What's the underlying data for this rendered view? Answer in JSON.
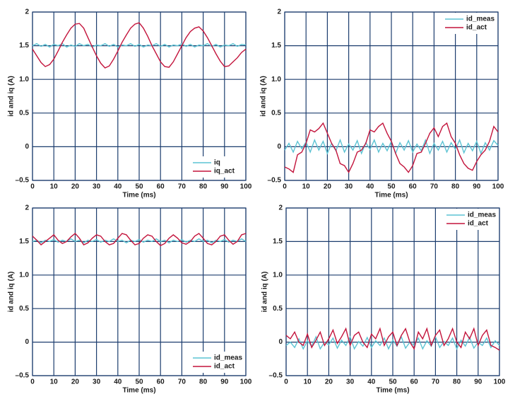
{
  "chart_data": [
    {
      "type": "line",
      "ylabel": "id and iq (A)",
      "xlabel": "Time (ms)",
      "xlim": [
        0,
        100
      ],
      "ylim": [
        -0.5,
        2
      ],
      "xticks": [
        0,
        10,
        20,
        30,
        40,
        50,
        60,
        70,
        80,
        90,
        100
      ],
      "yticks": [
        {
          "value": -0.5,
          "label": "–0.5"
        },
        0,
        0.5,
        {
          "value": 1,
          "label": "1.0"
        },
        1.5,
        2
      ],
      "grid": true,
      "legend": "lower right",
      "x": [
        0,
        2,
        4,
        6,
        8,
        10,
        12,
        14,
        16,
        18,
        20,
        22,
        24,
        26,
        28,
        30,
        32,
        34,
        36,
        38,
        40,
        42,
        44,
        46,
        48,
        50,
        52,
        54,
        56,
        58,
        60,
        62,
        64,
        66,
        68,
        70,
        72,
        74,
        76,
        78,
        80,
        82,
        84,
        86,
        88,
        90,
        92,
        94,
        96,
        98,
        100
      ],
      "series": [
        {
          "name": "iq",
          "color": "#5cc3d3",
          "values": [
            1.5,
            1.53,
            1.49,
            1.52,
            1.48,
            1.52,
            1.5,
            1.53,
            1.48,
            1.51,
            1.49,
            1.53,
            1.5,
            1.52,
            1.48,
            1.51,
            1.5,
            1.53,
            1.49,
            1.52,
            1.48,
            1.51,
            1.5,
            1.53,
            1.49,
            1.52,
            1.48,
            1.51,
            1.5,
            1.53,
            1.49,
            1.52,
            1.48,
            1.51,
            1.5,
            1.53,
            1.49,
            1.52,
            1.48,
            1.51,
            1.5,
            1.53,
            1.49,
            1.52,
            1.48,
            1.51,
            1.5,
            1.53,
            1.49,
            1.52,
            1.51
          ]
        },
        {
          "name": "iq_act",
          "color": "#c3143c",
          "values": [
            1.45,
            1.35,
            1.25,
            1.19,
            1.22,
            1.3,
            1.42,
            1.55,
            1.66,
            1.76,
            1.82,
            1.83,
            1.76,
            1.62,
            1.48,
            1.35,
            1.24,
            1.17,
            1.2,
            1.3,
            1.42,
            1.55,
            1.66,
            1.76,
            1.82,
            1.84,
            1.76,
            1.64,
            1.5,
            1.38,
            1.26,
            1.19,
            1.18,
            1.26,
            1.38,
            1.5,
            1.62,
            1.71,
            1.76,
            1.78,
            1.72,
            1.62,
            1.5,
            1.38,
            1.27,
            1.19,
            1.2,
            1.26,
            1.32,
            1.4,
            1.45
          ]
        }
      ]
    },
    {
      "type": "line",
      "ylabel": "id and iq (A)",
      "xlabel": "Time (ms)",
      "xlim": [
        0,
        100
      ],
      "ylim": [
        -0.5,
        2
      ],
      "xticks": [
        0,
        10,
        20,
        30,
        40,
        50,
        60,
        70,
        80,
        90,
        100
      ],
      "yticks": [
        {
          "value": -0.5,
          "label": "–0.5"
        },
        0,
        0.5,
        {
          "value": 1,
          "label": "1.0"
        },
        1.5,
        2
      ],
      "grid": true,
      "legend": "upper right",
      "x": [
        0,
        2,
        4,
        6,
        8,
        10,
        12,
        14,
        16,
        18,
        20,
        22,
        24,
        26,
        28,
        30,
        32,
        34,
        36,
        38,
        40,
        42,
        44,
        46,
        48,
        50,
        52,
        54,
        56,
        58,
        60,
        62,
        64,
        66,
        68,
        70,
        72,
        74,
        76,
        78,
        80,
        82,
        84,
        86,
        88,
        90,
        92,
        94,
        96,
        98,
        100
      ],
      "series": [
        {
          "name": "id_meas",
          "color": "#5cc3d3",
          "values": [
            -0.05,
            0.05,
            -0.08,
            0.08,
            -0.03,
            0.07,
            -0.08,
            0.1,
            -0.05,
            0.08,
            -0.1,
            0.05,
            -0.06,
            0.1,
            -0.08,
            0.04,
            -0.05,
            0.09,
            -0.1,
            0.06,
            -0.04,
            0.1,
            -0.08,
            0.05,
            -0.06,
            0.08,
            -0.1,
            0.06,
            -0.05,
            0.09,
            -0.08,
            0.04,
            -0.06,
            0.1,
            -0.1,
            0.05,
            -0.05,
            0.08,
            -0.08,
            0.06,
            -0.04,
            0.1,
            -0.09,
            0.05,
            -0.06,
            0.08,
            -0.1,
            0.06,
            -0.05,
            0.09,
            0.02
          ]
        },
        {
          "name": "id_act",
          "color": "#c3143c",
          "values": [
            -0.3,
            -0.33,
            -0.38,
            -0.12,
            -0.08,
            0.05,
            0.25,
            0.22,
            0.27,
            0.35,
            0.2,
            0.05,
            -0.05,
            -0.25,
            -0.28,
            -0.38,
            -0.25,
            -0.08,
            -0.05,
            0.05,
            0.25,
            0.22,
            0.3,
            0.35,
            0.2,
            0.08,
            -0.1,
            -0.25,
            -0.3,
            -0.38,
            -0.28,
            -0.1,
            -0.08,
            0.05,
            0.2,
            0.28,
            0.15,
            0.3,
            0.35,
            0.15,
            0.05,
            -0.12,
            -0.25,
            -0.32,
            -0.35,
            -0.22,
            -0.12,
            -0.05,
            0.08,
            0.3,
            0.22
          ]
        }
      ]
    },
    {
      "type": "line",
      "ylabel": "id and iq (A)",
      "xlabel": "Time (ms)",
      "xlim": [
        0,
        100
      ],
      "ylim": [
        -0.5,
        2
      ],
      "xticks": [
        0,
        10,
        20,
        30,
        40,
        50,
        60,
        70,
        80,
        90,
        100
      ],
      "yticks": [
        {
          "value": -0.5,
          "label": "–0.5"
        },
        0,
        0.5,
        {
          "value": 1,
          "label": "1.0"
        },
        1.5,
        2
      ],
      "grid": true,
      "legend": "lower right",
      "x": [
        0,
        2,
        4,
        6,
        8,
        10,
        12,
        14,
        16,
        18,
        20,
        22,
        24,
        26,
        28,
        30,
        32,
        34,
        36,
        38,
        40,
        42,
        44,
        46,
        48,
        50,
        52,
        54,
        56,
        58,
        60,
        62,
        64,
        66,
        68,
        70,
        72,
        74,
        76,
        78,
        80,
        82,
        84,
        86,
        88,
        90,
        92,
        94,
        96,
        98,
        100
      ],
      "series": [
        {
          "name": "id_meas",
          "color": "#5cc3d3",
          "values": [
            1.5,
            1.52,
            1.48,
            1.52,
            1.5,
            1.53,
            1.49,
            1.52,
            1.5,
            1.54,
            1.5,
            1.52,
            1.48,
            1.52,
            1.5,
            1.53,
            1.49,
            1.52,
            1.5,
            1.54,
            1.5,
            1.52,
            1.48,
            1.52,
            1.5,
            1.53,
            1.49,
            1.52,
            1.5,
            1.54,
            1.5,
            1.52,
            1.48,
            1.52,
            1.5,
            1.53,
            1.49,
            1.52,
            1.5,
            1.54,
            1.5,
            1.52,
            1.48,
            1.52,
            1.5,
            1.53,
            1.49,
            1.52,
            1.5,
            1.54,
            1.5
          ]
        },
        {
          "name": "id_act",
          "color": "#c3143c",
          "values": [
            1.58,
            1.52,
            1.45,
            1.5,
            1.55,
            1.6,
            1.52,
            1.47,
            1.5,
            1.57,
            1.62,
            1.55,
            1.45,
            1.48,
            1.55,
            1.6,
            1.58,
            1.5,
            1.45,
            1.47,
            1.55,
            1.62,
            1.6,
            1.52,
            1.45,
            1.47,
            1.55,
            1.6,
            1.58,
            1.5,
            1.44,
            1.47,
            1.55,
            1.6,
            1.55,
            1.48,
            1.46,
            1.5,
            1.58,
            1.62,
            1.55,
            1.47,
            1.45,
            1.5,
            1.58,
            1.6,
            1.52,
            1.46,
            1.5,
            1.6,
            1.62
          ]
        }
      ]
    },
    {
      "type": "line",
      "ylabel": "id and iq (A)",
      "xlabel": "Time (ms)",
      "xlim": [
        0,
        100
      ],
      "ylim": [
        -0.5,
        2
      ],
      "xticks": [
        0,
        10,
        20,
        30,
        40,
        50,
        60,
        70,
        80,
        90,
        100
      ],
      "yticks": [
        {
          "value": -0.5,
          "label": "–0.5"
        },
        0,
        0.5,
        {
          "value": 1,
          "label": "1.0"
        },
        1.5,
        2
      ],
      "grid": true,
      "legend": "upper right",
      "x": [
        0,
        2,
        4,
        6,
        8,
        10,
        12,
        14,
        16,
        18,
        20,
        22,
        24,
        26,
        28,
        30,
        32,
        34,
        36,
        38,
        40,
        42,
        44,
        46,
        48,
        50,
        52,
        54,
        56,
        58,
        60,
        62,
        64,
        66,
        68,
        70,
        72,
        74,
        76,
        78,
        80,
        82,
        84,
        86,
        88,
        90,
        92,
        94,
        96,
        98,
        100
      ],
      "series": [
        {
          "name": "id_meas",
          "color": "#5cc3d3",
          "values": [
            -0.05,
            0.0,
            -0.08,
            0.05,
            -0.1,
            0.02,
            -0.06,
            0.08,
            -0.1,
            0.0,
            -0.04,
            0.06,
            -0.09,
            0.03,
            -0.05,
            0.08,
            -0.1,
            0.01,
            -0.06,
            0.07,
            -0.08,
            0.02,
            -0.05,
            0.06,
            -0.1,
            0.03,
            -0.06,
            0.08,
            -0.09,
            0.0,
            -0.05,
            0.06,
            -0.1,
            0.02,
            -0.06,
            0.08,
            -0.08,
            0.01,
            -0.05,
            0.06,
            -0.1,
            0.03,
            -0.06,
            0.07,
            -0.09,
            0.0,
            -0.05,
            0.06,
            -0.08,
            0.02,
            -0.05
          ]
        },
        {
          "name": "id_act",
          "color": "#c3143c",
          "values": [
            0.1,
            0.05,
            0.15,
            0.0,
            -0.05,
            0.12,
            -0.08,
            0.03,
            0.15,
            -0.05,
            0.05,
            0.18,
            -0.02,
            0.08,
            0.2,
            -0.05,
            0.1,
            0.15,
            0.0,
            -0.08,
            0.12,
            0.05,
            0.2,
            -0.05,
            0.08,
            0.15,
            -0.05,
            0.1,
            0.2,
            0.0,
            -0.1,
            0.15,
            0.05,
            0.2,
            -0.05,
            0.1,
            0.18,
            -0.05,
            0.05,
            0.2,
            0.0,
            -0.08,
            0.15,
            0.05,
            0.2,
            -0.05,
            0.1,
            0.18,
            -0.05,
            -0.08,
            -0.12
          ]
        }
      ]
    }
  ]
}
